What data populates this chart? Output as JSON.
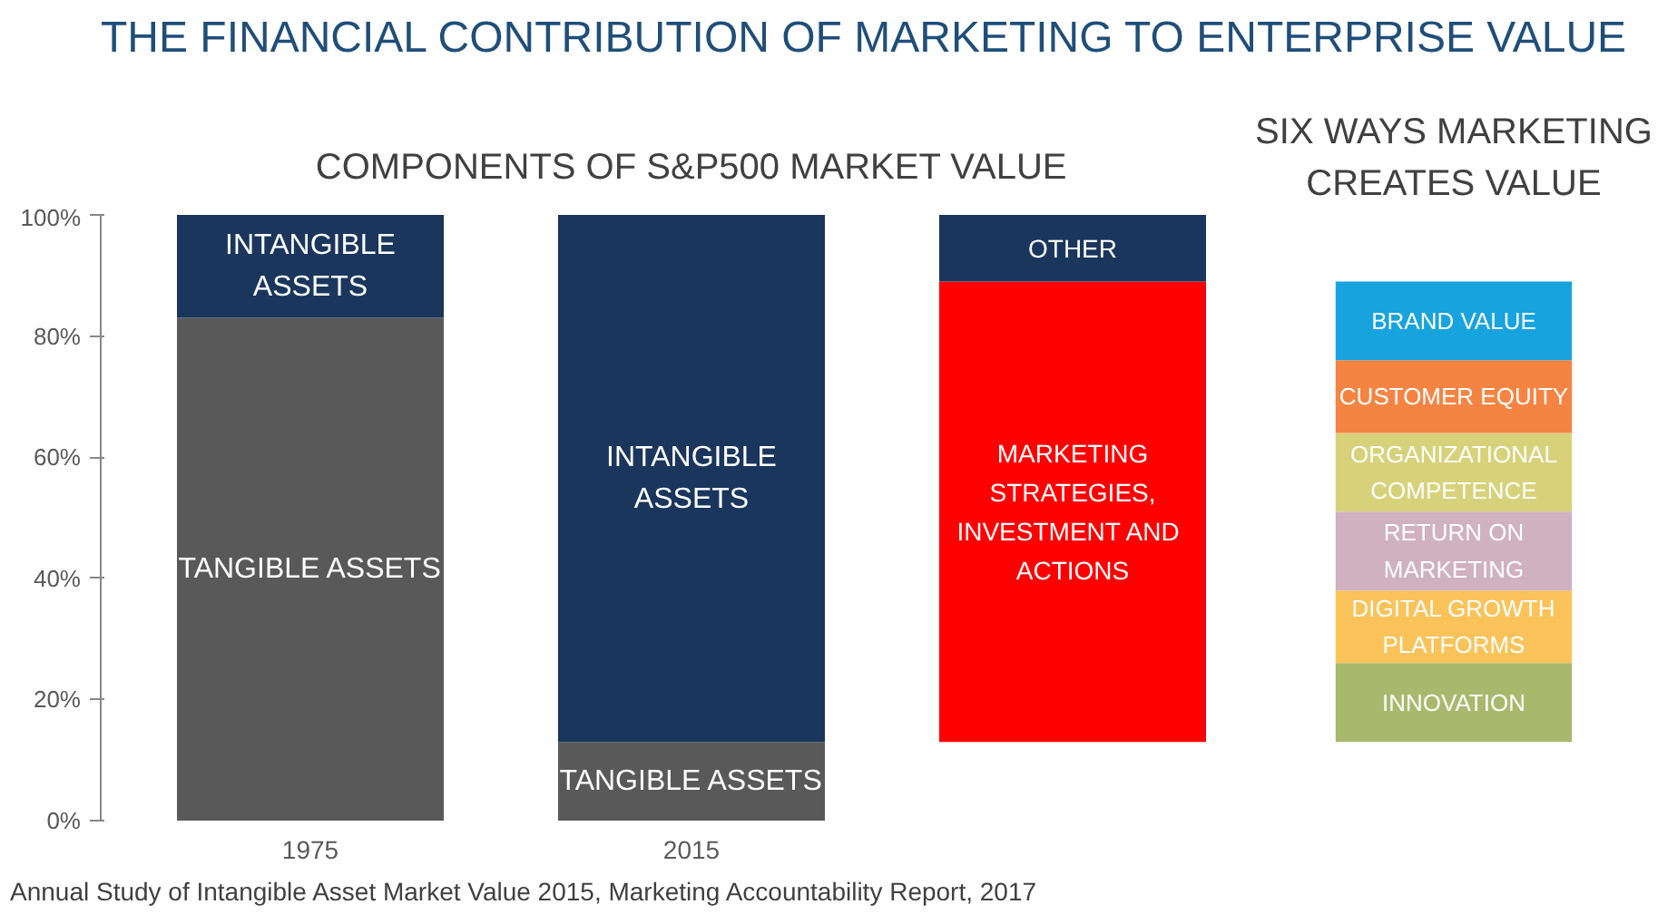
{
  "chart_data": {
    "type": "bar",
    "title": "THE FINANCIAL CONTRIBUTION OF MARKETING TO ENTERPRISE VALUE",
    "categories": [
      "1975",
      "2015",
      null,
      null
    ],
    "series": [
      {
        "name": "TANGIBLE ASSETS",
        "color": "#595959",
        "values": [
          83,
          null,
          null,
          null
        ],
        "base": [
          0,
          null,
          null,
          null
        ]
      },
      {
        "name": "INTANGIBLE ASSETS",
        "color": "#1a365d",
        "values": [
          17,
          null,
          null,
          null
        ],
        "base": [
          83,
          null,
          null,
          null
        ]
      },
      {
        "name": "TANGIBLE ASSETS",
        "color": "#595959",
        "values": [
          null,
          13,
          null,
          null
        ],
        "base": [
          null,
          0,
          null,
          null
        ]
      },
      {
        "name": "INTANGIBLE ASSETS",
        "color": "#1a365d",
        "values": [
          null,
          87,
          null,
          null
        ],
        "base": [
          null,
          13,
          null,
          null
        ]
      },
      {
        "name": "MARKETING STRATEGIES, INVESTMENT  AND ACTIONS",
        "color": "#ff0000",
        "values": [
          null,
          null,
          76,
          null
        ],
        "base": [
          null,
          null,
          13,
          null
        ]
      },
      {
        "name": "OTHER",
        "color": "#1a365d",
        "values": [
          null,
          null,
          11,
          null
        ],
        "base": [
          null,
          null,
          89,
          null
        ]
      },
      {
        "name": "INNOVATION",
        "color": "#a9b86c",
        "values": [
          null,
          null,
          null,
          13
        ],
        "base": [
          null,
          null,
          null,
          13
        ]
      },
      {
        "name": "DIGITAL GROWTH PLATFORMS",
        "color": "#fac35a",
        "values": [
          null,
          null,
          null,
          12
        ],
        "base": [
          null,
          null,
          null,
          26
        ]
      },
      {
        "name": "RETURN ON MARKETING",
        "color": "#d0b1c0",
        "values": [
          null,
          null,
          null,
          13
        ],
        "base": [
          null,
          null,
          null,
          38
        ]
      },
      {
        "name": "ORGANIZATIONAL COMPETENCE",
        "color": "#d7d27a",
        "values": [
          null,
          null,
          null,
          13
        ],
        "base": [
          null,
          null,
          null,
          51
        ]
      },
      {
        "name": "CUSTOMER EQUITY",
        "color": "#f58442",
        "values": [
          null,
          null,
          null,
          12
        ],
        "base": [
          null,
          null,
          null,
          64
        ]
      },
      {
        "name": "BRAND VALUE",
        "color": "#17a3de",
        "values": [
          null,
          null,
          null,
          13
        ],
        "base": [
          null,
          null,
          null,
          76
        ]
      }
    ],
    "ylim": [
      0,
      100
    ],
    "yticks": [
      {
        "value": 0,
        "label": "0%"
      },
      {
        "value": 20,
        "label": "20%"
      },
      {
        "value": 40,
        "label": "40%"
      },
      {
        "value": 60,
        "label": "60%"
      },
      {
        "value": 80,
        "label": "80%"
      },
      {
        "value": 100,
        "label": "100%"
      }
    ],
    "grid": false,
    "annotations": [
      "COMPONENTS OF S&P500 MARKET VALUE",
      "SIX WAYS MARKETING CREATES VALUE",
      "Annual Study of Intangible Asset Market Value 2015, Marketing Accountability Report, 2017"
    ]
  }
}
